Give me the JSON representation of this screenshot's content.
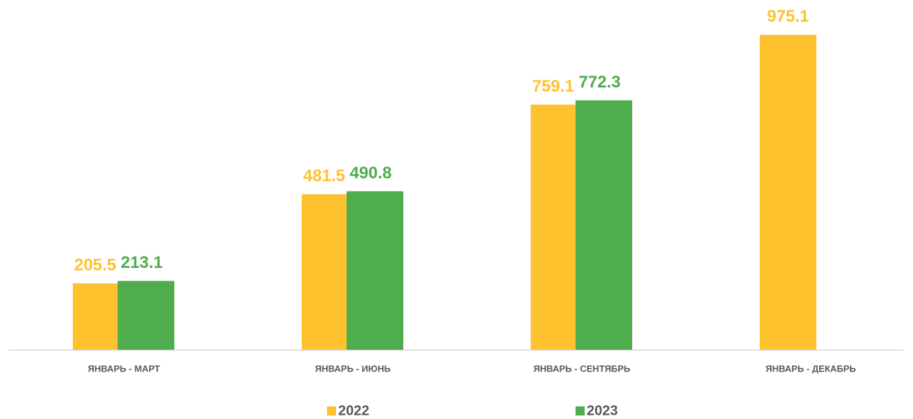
{
  "chart_data": {
    "type": "bar",
    "categories": [
      "ЯНВАРЬ - МАРТ",
      "ЯНВАРЬ - ИЮНЬ",
      "ЯНВАРЬ - СЕНТЯБРЬ",
      "ЯНВАРЬ - ДЕКАБРЬ"
    ],
    "series": [
      {
        "name": "2022",
        "color": "#FFC22F",
        "values": [
          205.5,
          481.5,
          759.1,
          975.1
        ]
      },
      {
        "name": "2023",
        "color": "#4FAD4E",
        "values": [
          213.1,
          490.8,
          772.3,
          null
        ]
      }
    ],
    "ylim": [
      0,
      1083
    ],
    "grid": false,
    "legend": "bottom"
  }
}
